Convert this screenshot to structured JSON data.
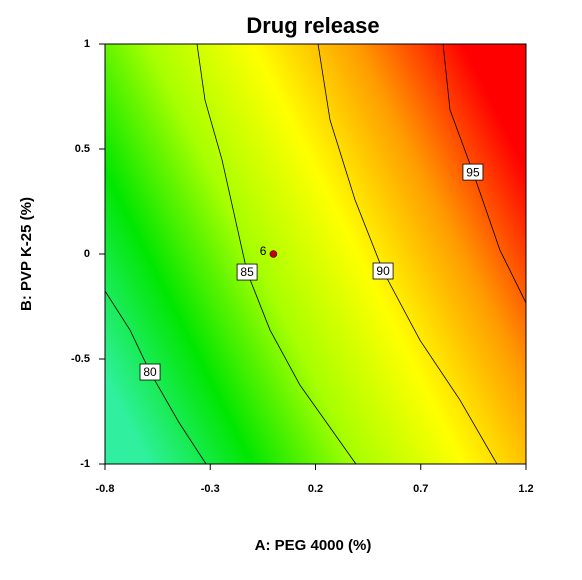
{
  "chart_data": {
    "type": "contour",
    "title": "Drug release",
    "x_label": "A: PEG 4000 (%)",
    "y_label": "B: PVP K-25 (%)",
    "xlim": [
      -0.8,
      1.2
    ],
    "ylim": [
      -1,
      1
    ],
    "xticks": [
      -0.8,
      -0.3,
      0.2,
      0.7,
      1.2
    ],
    "yticks": [
      -1,
      -0.5,
      0,
      0.5,
      1
    ],
    "colorscale": [
      "#30f0a0",
      "#00e600",
      "#a8ff00",
      "#ffff00",
      "#ff9a00",
      "#ff0000"
    ],
    "line_color": "#000000",
    "contours": [
      {
        "level": 80,
        "x": [
          -0.8,
          -0.681,
          -0.586,
          -0.45,
          -0.32
        ],
        "y": [
          -0.176,
          -0.362,
          -0.562,
          -0.8,
          -1
        ]
      },
      {
        "level": 85,
        "x": [
          -0.363,
          -0.325,
          -0.244,
          -0.125,
          -0.016,
          0.126,
          0.392
        ],
        "y": [
          1,
          0.733,
          0.448,
          -0.086,
          -0.362,
          -0.624,
          -1
        ]
      },
      {
        "level": 90,
        "x": [
          0.212,
          0.269,
          0.388,
          0.521,
          0.696,
          0.886,
          1.062
        ],
        "y": [
          1,
          0.638,
          0.257,
          -0.081,
          -0.41,
          -0.695,
          -1
        ]
      },
      {
        "level": 95,
        "x": [
          0.806,
          0.839,
          0.948,
          1.076,
          1.2
        ],
        "y": [
          1,
          0.686,
          0.39,
          0.019,
          -0.233
        ]
      }
    ],
    "points": [
      {
        "x": 0,
        "y": 0,
        "label": "6",
        "color": "#c00000"
      }
    ]
  }
}
